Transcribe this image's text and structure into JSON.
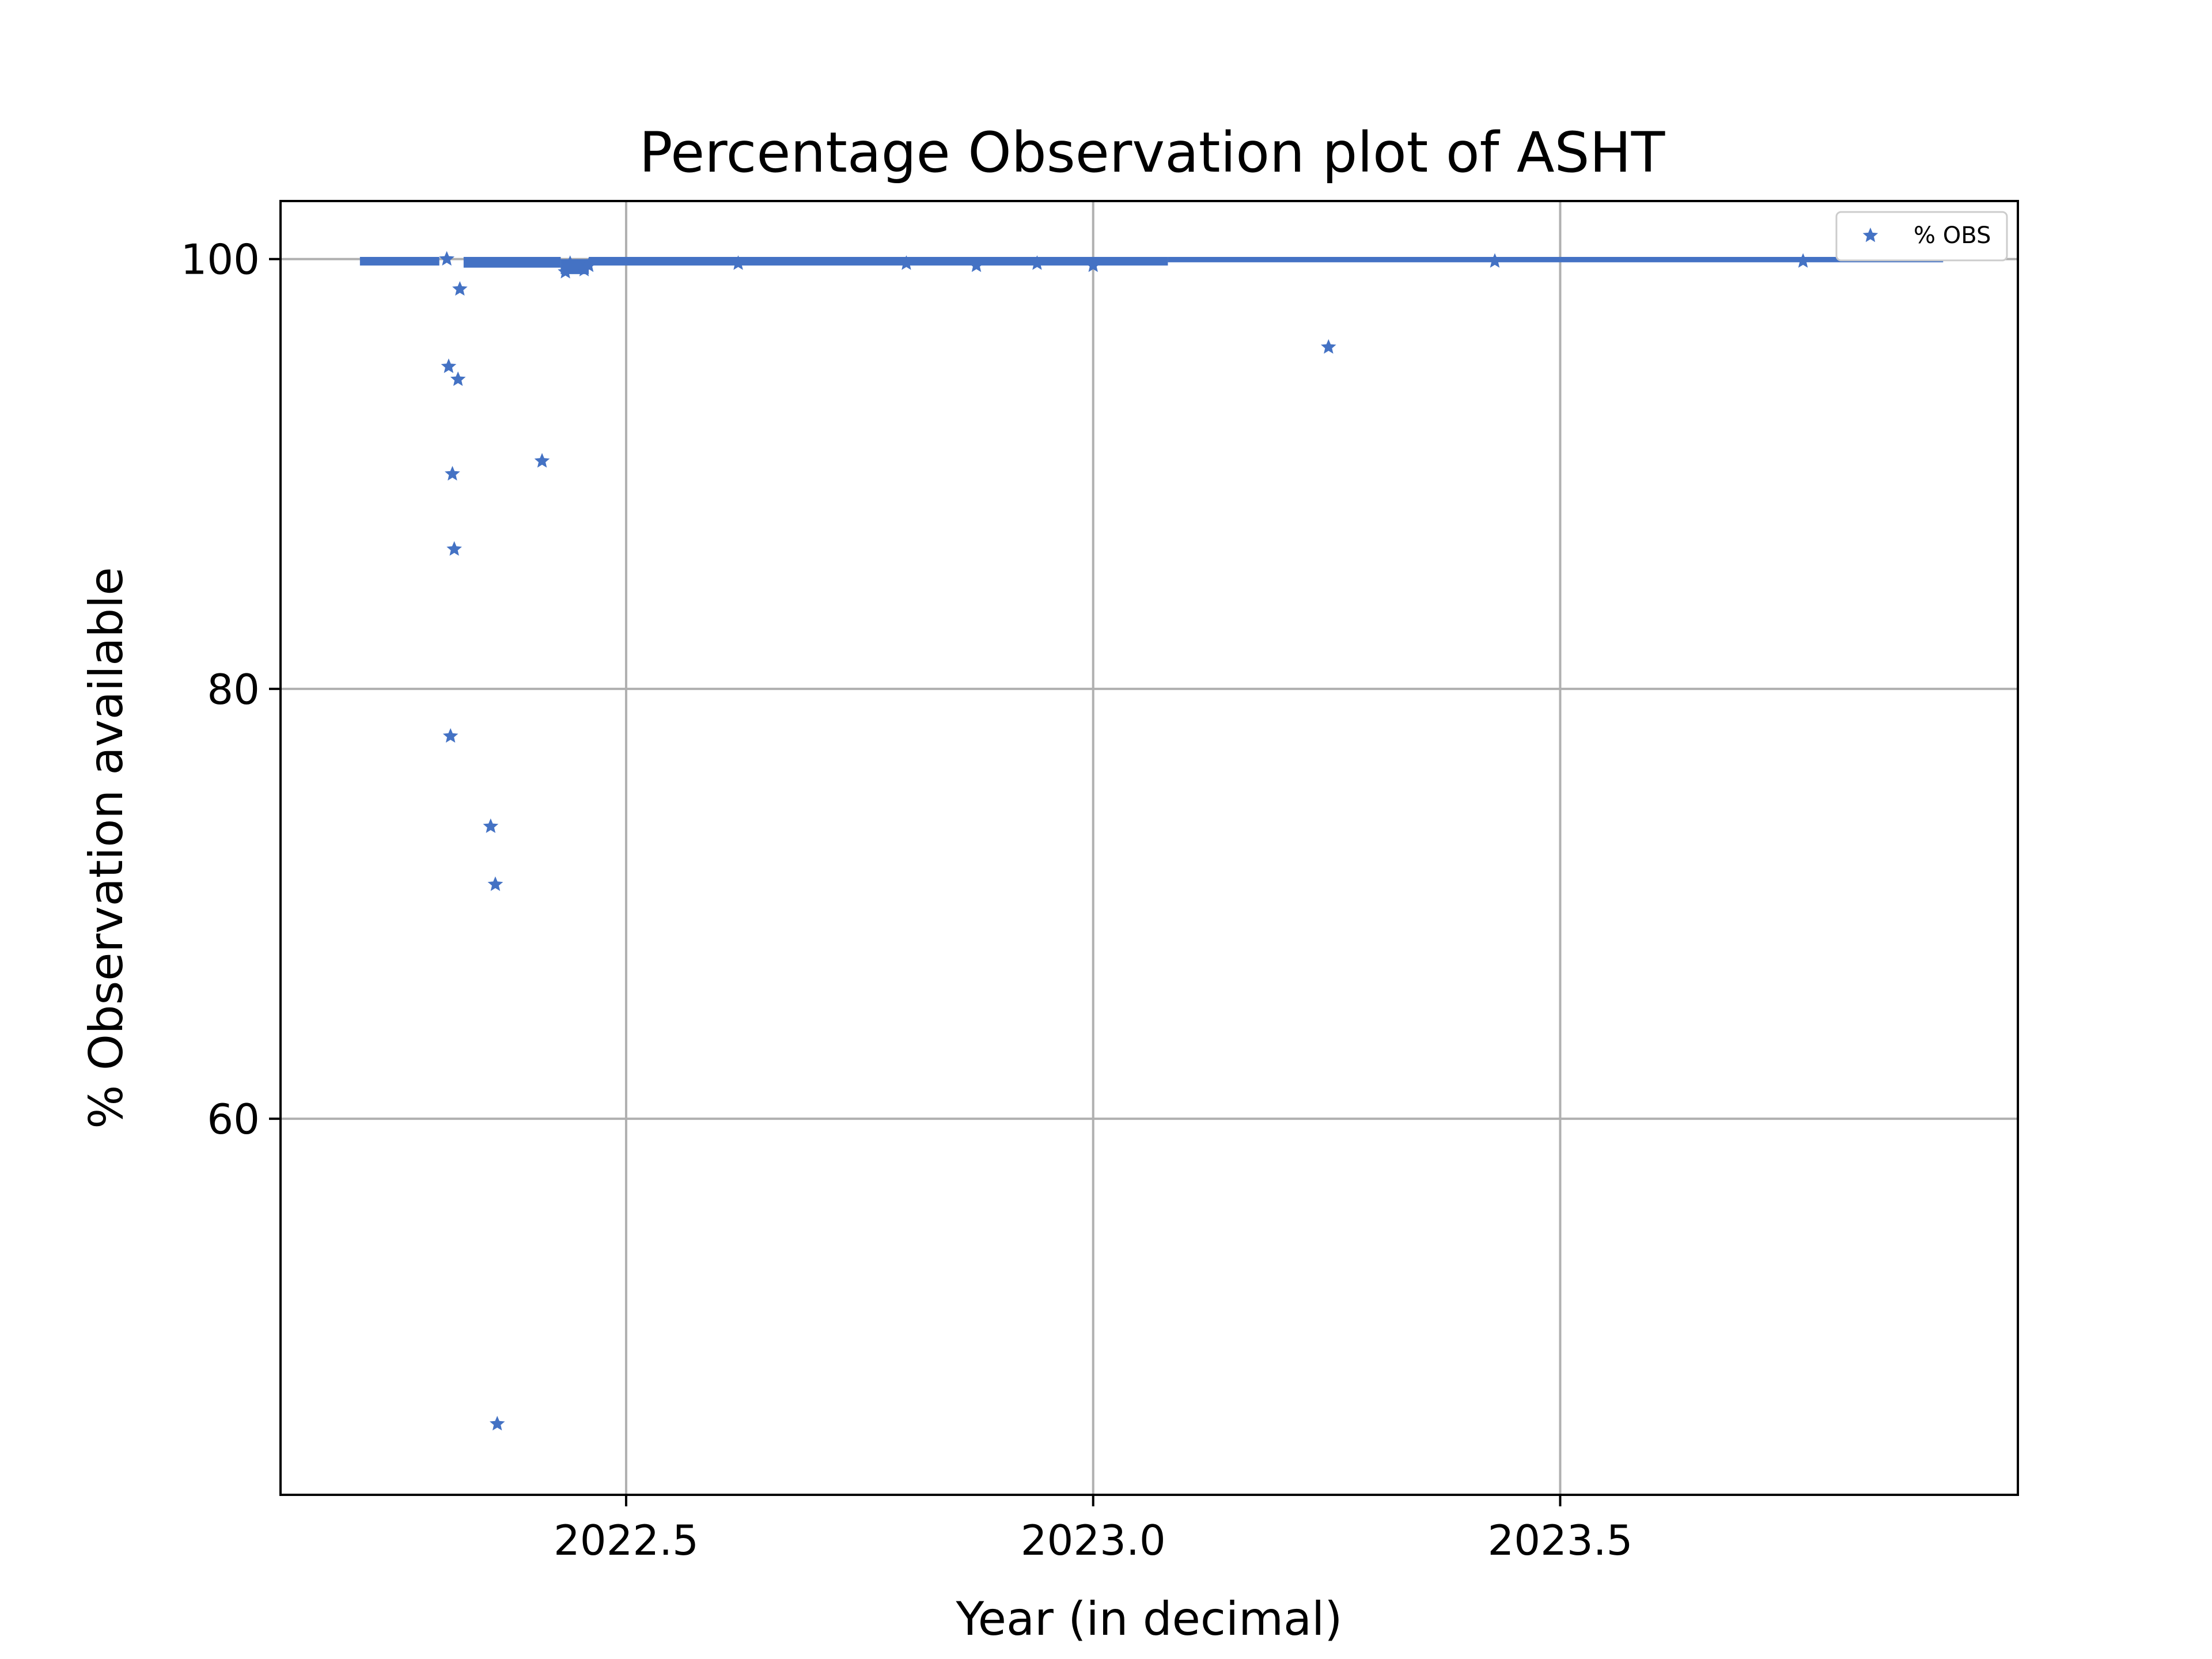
{
  "chart_data": {
    "type": "scatter",
    "title": "Percentage Observation plot of ASHT",
    "xlabel": "Year (in decimal)",
    "ylabel": "% Observation available",
    "xlim": [
      2022.13,
      2023.99
    ],
    "ylim": [
      42.5,
      102.7
    ],
    "xticks": [
      2022.5,
      2023.0,
      2023.5
    ],
    "xtick_labels": [
      "2022.5",
      "2023.0",
      "2023.5"
    ],
    "yticks": [
      60,
      80,
      100
    ],
    "ytick_labels": [
      "60",
      "80",
      "100"
    ],
    "grid": true,
    "legend_position": "top-right",
    "marker": "star",
    "series": [
      {
        "name": "% OBS",
        "color": "#4472c4",
        "x": [
          2022.308,
          2022.31,
          2022.312,
          2022.314,
          2022.316,
          2022.32,
          2022.322,
          2022.355,
          2022.36,
          2022.362,
          2022.41,
          2022.435,
          2022.44,
          2022.448,
          2022.455,
          2022.46,
          2022.62,
          2022.8,
          2022.875,
          2022.94,
          2023.0,
          2023.252,
          2023.43,
          2023.76
        ],
        "y": [
          100,
          95.0,
          77.8,
          90.0,
          86.5,
          94.4,
          98.6,
          73.6,
          70.9,
          45.8,
          90.6,
          99.4,
          99.8,
          99.6,
          99.5,
          99.7,
          99.8,
          99.8,
          99.7,
          99.8,
          99.7,
          95.9,
          99.9,
          99.9
        ]
      }
    ],
    "dense_band": [
      {
        "x_start": 2022.215,
        "x_end": 2022.3,
        "y_low": 99.7,
        "y_high": 100.1
      },
      {
        "x_start": 2022.326,
        "x_end": 2022.43,
        "y_low": 99.6,
        "y_high": 100.1
      },
      {
        "x_start": 2022.43,
        "x_end": 2022.46,
        "y_low": 99.3,
        "y_high": 100.0
      },
      {
        "x_start": 2022.46,
        "x_end": 2023.08,
        "y_low": 99.7,
        "y_high": 100.1
      },
      {
        "x_start": 2023.08,
        "x_end": 2023.91,
        "y_low": 99.85,
        "y_high": 100.1
      }
    ]
  }
}
